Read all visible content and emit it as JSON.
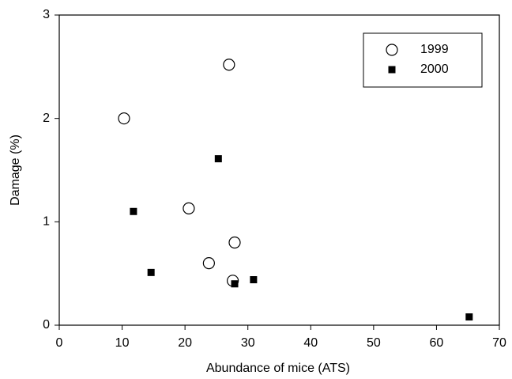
{
  "chart_data": {
    "type": "scatter",
    "x_label": "Abundance of mice (ATS)",
    "y_label": "Damage (%)",
    "series": [
      {
        "name": "1999",
        "marker": "open-circle",
        "color": "#000000",
        "x": [
          10.3,
          27.0,
          20.6,
          23.8,
          27.9,
          27.6
        ],
        "values": [
          2.0,
          2.52,
          1.13,
          0.6,
          0.8,
          0.43
        ]
      },
      {
        "name": "2000",
        "marker": "filled-square",
        "color": "#000000",
        "x": [
          11.8,
          25.3,
          14.6,
          27.9,
          30.9,
          65.2
        ],
        "values": [
          1.1,
          1.61,
          0.51,
          0.4,
          0.44,
          0.08
        ]
      }
    ],
    "xlim": [
      0,
      70
    ],
    "xticks": [
      0,
      10,
      20,
      30,
      40,
      50,
      60,
      70
    ],
    "ylim": [
      0,
      3
    ],
    "yticks": [
      0,
      1,
      2,
      3
    ],
    "legend": "top-right",
    "grid": false
  }
}
